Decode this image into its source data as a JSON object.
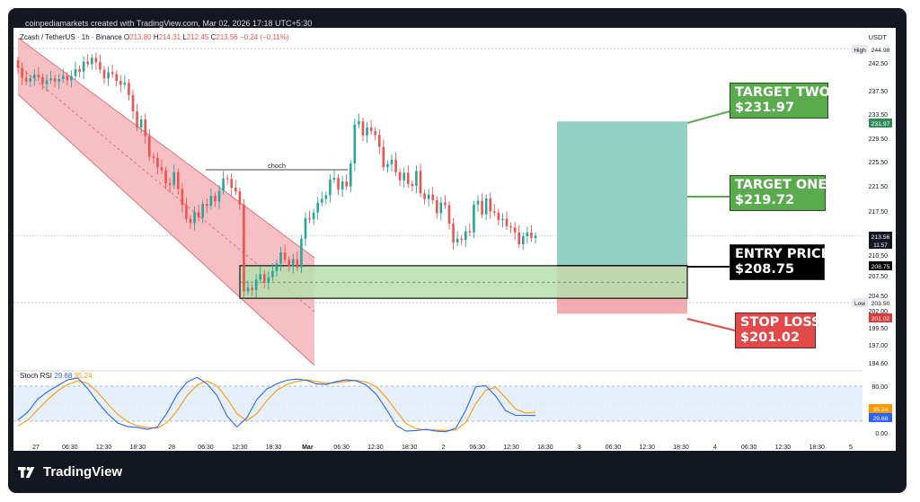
{
  "header": {
    "attribution": "coinpediamarkets created with TradingView.com, Mar 02, 2026 17:18 UTC+5:30"
  },
  "legend": {
    "symbol": "Zcash / TetherUS · 1h · Binance",
    "open_label": "O",
    "open": "213.80",
    "high_label": "H",
    "high": "214.31",
    "low_label": "L",
    "low": "212.45",
    "close_label": "C",
    "close": "213.56",
    "change": "−0.24 (−0.11%)"
  },
  "currency": "USDT",
  "callouts": {
    "target_two": {
      "title": "TARGET TWO",
      "price": "$231.97"
    },
    "target_one": {
      "title": "TARGET ONE",
      "price": "$219.72"
    },
    "entry": {
      "title": "ENTRY PRICE",
      "price": "$208.75"
    },
    "stop_loss": {
      "title": "STOP LOSS",
      "price": "$201.02"
    }
  },
  "annotations": {
    "choch": "choch"
  },
  "oscillator": {
    "name": "Stoch RSI",
    "k_value": "29.68",
    "d_value": "35.24"
  },
  "brand": {
    "name": "TradingView"
  },
  "colors": {
    "up": "#26a69a",
    "down": "#ef5350",
    "channel_fill": "#f4b4b8",
    "demand_zone": "#b7dfae",
    "target_zone": "#7ec8b8",
    "stop_zone": "#f09ea4",
    "k_line": "#2962ff",
    "d_line": "#ff9800",
    "callout_green": "#5aab4e",
    "callout_red": "#e24a4a"
  },
  "chart_data": [
    {
      "type": "candlestick",
      "title": "Zcash / TetherUS · 1h · Binance",
      "ylabel": "USDT",
      "ylim": [
        193.3,
        247.3
      ],
      "y_ticks": [
        "242.50",
        "237.50",
        "233.50",
        "229.50",
        "225.50",
        "221.50",
        "217.50",
        "213.50",
        "210.50",
        "207.50",
        "204.50",
        "202.00",
        "199.50",
        "197.00",
        "194.60"
      ],
      "y_badges": [
        {
          "label": "High",
          "value": "244.98"
        },
        {
          "label": "",
          "value": "231.97"
        },
        {
          "label": "",
          "value": "213.56",
          "sub": "11:57"
        },
        {
          "label": "",
          "value": "208.75"
        },
        {
          "label": "Low",
          "value": "203.50"
        },
        {
          "label": "",
          "value": "201.02"
        }
      ],
      "x_ticks": [
        "27",
        "06:30",
        "12:30",
        "18:30",
        "28",
        "06:30",
        "12:30",
        "18:30",
        "Mar",
        "06:30",
        "12:30",
        "18:30",
        "2",
        "06:30",
        "12:30",
        "18:30",
        "3",
        "06:30",
        "12:30",
        "18:30",
        "4",
        "06:30",
        "12:30",
        "18:30",
        "5"
      ],
      "close": [
        240.6,
        239.0,
        238.4,
        238.9,
        239.5,
        239.1,
        238.0,
        238.6,
        238.9,
        238.4,
        238.8,
        239.3,
        238.6,
        239.3,
        240.4,
        240.0,
        241.6,
        241.2,
        242.2,
        241.5,
        240.3,
        238.9,
        239.9,
        239.6,
        238.5,
        237.9,
        238.2,
        236.2,
        233.6,
        231.0,
        232.3,
        229.6,
        226.3,
        226.1,
        224.6,
        224.1,
        222.0,
        221.7,
        223.8,
        221.1,
        218.5,
        216.3,
        215.6,
        217.4,
        216.5,
        218.7,
        218.4,
        220.0,
        219.1,
        220.8,
        222.8,
        222.7,
        221.3,
        220.7,
        218.6,
        204.6,
        205.2,
        204.8,
        206.5,
        207.4,
        206.0,
        206.9,
        207.9,
        209.1,
        210.9,
        209.7,
        208.7,
        209.8,
        208.5,
        213.1,
        216.4,
        216.2,
        217.3,
        218.9,
        219.5,
        220.1,
        222.6,
        222.9,
        221.0,
        222.3,
        221.5,
        225.2,
        231.5,
        232.0,
        229.7,
        231.0,
        230.4,
        229.8,
        227.9,
        224.6,
        225.1,
        225.8,
        223.8,
        222.5,
        223.7,
        221.9,
        221.6,
        224.0,
        220.4,
        219.5,
        220.2,
        219.3,
        217.2,
        218.9,
        218.5,
        215.5,
        212.5,
        213.1,
        212.9,
        214.3,
        214.1,
        218.6,
        219.2,
        217.0,
        219.6,
        217.5,
        217.3,
        216.1,
        216.3,
        215.1,
        214.9,
        214.1,
        212.2,
        213.5,
        214.1,
        213.2,
        213.56
      ],
      "series": [
        {
          "name": "Stoch RSI K",
          "values": [
            22,
            36,
            58,
            71,
            81,
            91,
            94,
            76,
            53,
            33,
            17,
            11,
            9,
            6,
            10,
            35,
            66,
            87,
            95,
            84,
            64,
            29,
            10,
            26,
            57,
            75,
            84,
            90,
            92,
            90,
            84,
            83,
            88,
            91,
            89,
            82,
            66,
            41,
            13,
            3,
            4,
            6,
            3,
            2,
            8,
            39,
            79,
            81,
            63,
            38,
            30,
            30,
            29.68
          ]
        },
        {
          "name": "Stoch RSI D",
          "values": [
            12,
            22,
            40,
            57,
            72,
            83,
            89,
            85,
            70,
            50,
            32,
            19,
            12,
            9,
            8,
            18,
            38,
            64,
            82,
            89,
            81,
            59,
            33,
            21,
            33,
            55,
            73,
            83,
            88,
            91,
            88,
            85,
            86,
            88,
            90,
            87,
            79,
            61,
            38,
            16,
            7,
            5,
            5,
            4,
            5,
            18,
            50,
            73,
            78,
            60,
            41,
            34,
            35.24
          ]
        }
      ],
      "oscillator_ylim": [
        0,
        100
      ],
      "oscillator_levels": [
        80,
        20
      ],
      "oscillator_ticks": [
        "80.00",
        "0.00"
      ]
    }
  ]
}
